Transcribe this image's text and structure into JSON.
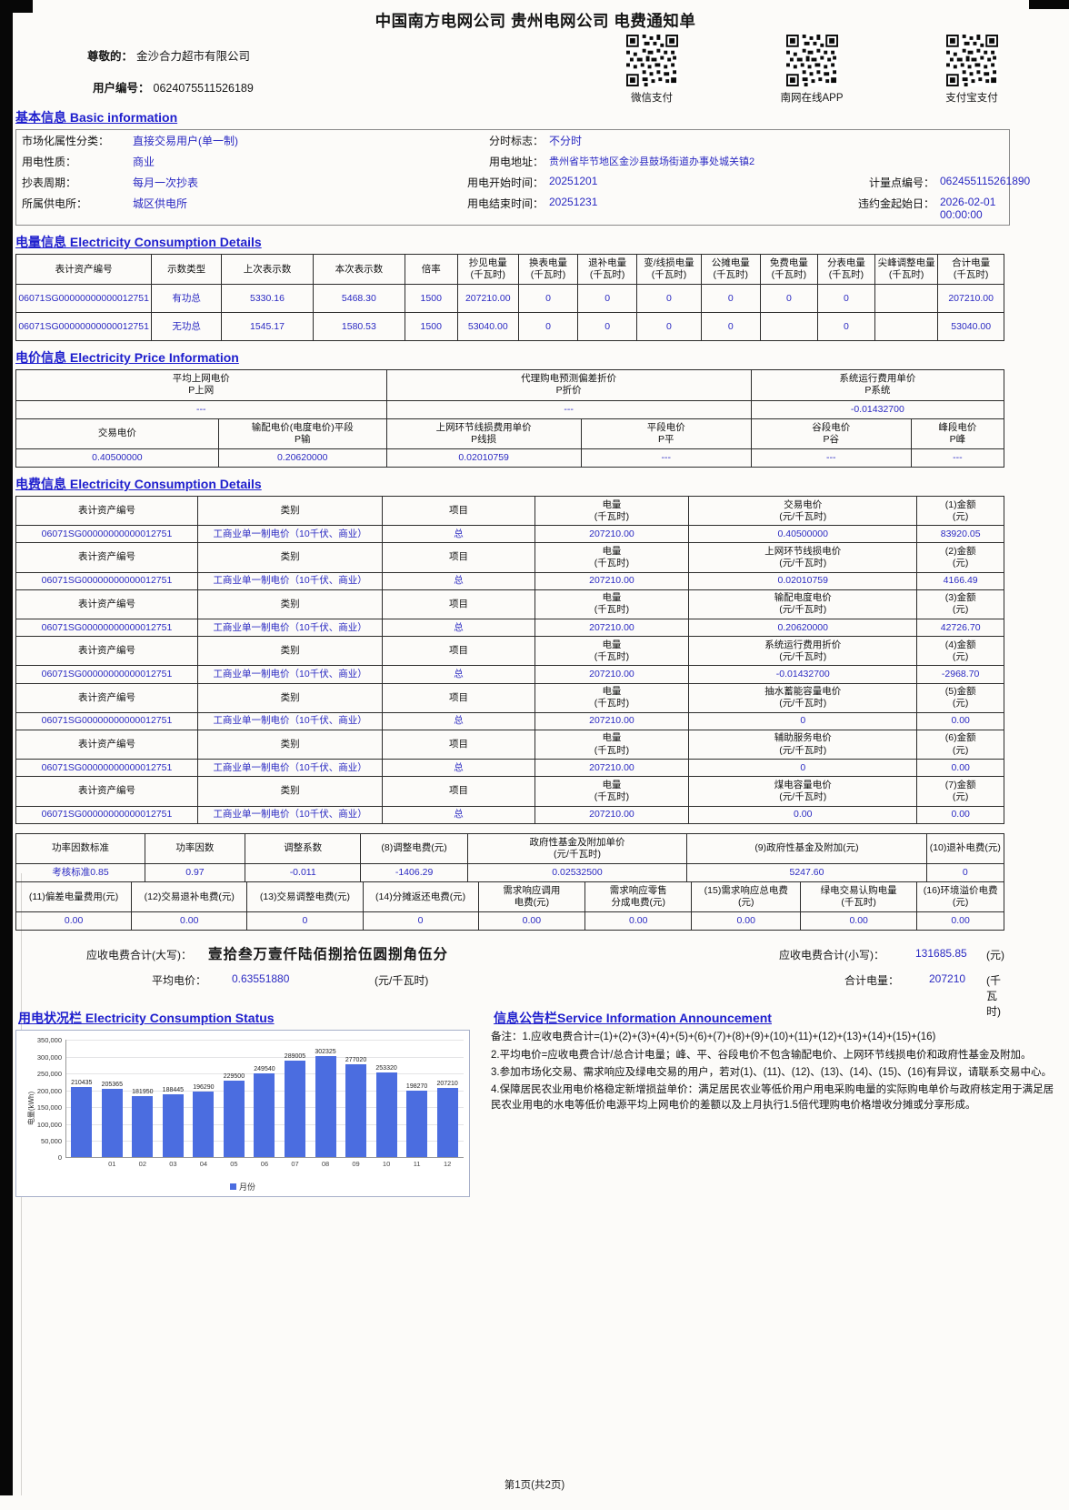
{
  "page": {
    "title": "中国南方电网公司 贵州电网公司 电费通知单",
    "footer": "第1页(共2页)"
  },
  "customer": {
    "greeting_label": "尊敬的：",
    "name": "金沙合力超市有限公司",
    "user_no_label": "用户编号：",
    "user_no": "0624075511526189"
  },
  "payments": [
    {
      "label": "微信支付"
    },
    {
      "label": "南网在线APP"
    },
    {
      "label": "支付宝支付"
    }
  ],
  "section_titles": {
    "basic": "基本信息 Basic information",
    "energy": "电量信息 Electricity Consumption Details",
    "price": "电价信息 Electricity Price Information",
    "fee": "电费信息 Electricity Consumption Details",
    "status": "用电状况栏 Electricity Consumption Status",
    "announcement": "信息公告栏Service Information Announcement"
  },
  "basic_info": {
    "r1c1l": "市场化属性分类：",
    "r1c1v": "直接交易用户(单一制)",
    "r1c2l": "分时标志：",
    "r1c2v": "不分时",
    "r2c1l": "用电性质：",
    "r2c1v": "商业",
    "r2c2l": "用电地址：",
    "r2c2v": "贵州省毕节地区金沙县鼓场街道办事处城关镇2",
    "r3c1l": "抄表周期：",
    "r3c1v": "每月一次抄表",
    "r3c2l": "用电开始时间：",
    "r3c2v": "20251201",
    "r3c3l": "计量点编号：",
    "r3c3v": "062455115261890",
    "r4c1l": "所属供电所：",
    "r4c1v": "城区供电所",
    "r4c2l": "用电结束时间：",
    "r4c2v": "20251231",
    "r4c3l": "违约金起始日：",
    "r4c3v": "2026-02-01 00:00:00"
  },
  "energy_table": {
    "widths": [
      14.2,
      7.3,
      9.6,
      9.6,
      5.5,
      6.4,
      6.2,
      6.2,
      6.7,
      6.2,
      6.0,
      6.0,
      6.6,
      6.9
    ],
    "rows": [
      {
        "h": 1,
        "cells": [
          "表计资产编号",
          "示数类型",
          "上次表示数",
          "本次表示数",
          "倍率",
          "抄见电量\n(千瓦时)",
          "换表电量\n(千瓦时)",
          "退补电量\n(千瓦时)",
          "变/线损电量\n(千瓦时)",
          "公摊电量\n(千瓦时)",
          "免费电量\n(千瓦时)",
          "分表电量\n(千瓦时)",
          "尖峰调整电量\n(千瓦时)",
          "合计电量\n(千瓦时)"
        ]
      },
      {
        "h": 0,
        "cells": [
          "06071SG00000000000012751",
          "有功总",
          "5330.16",
          "5468.30",
          "1500",
          "207210.00",
          "0",
          "0",
          "0",
          "0",
          "0",
          "0",
          "",
          "207210.00"
        ]
      },
      {
        "h": 0,
        "cells": [
          "06071SG00000000000012751",
          "无功总",
          "1545.17",
          "1580.53",
          "1500",
          "53040.00",
          "0",
          "0",
          "0",
          "0",
          "",
          "0",
          "",
          "53040.00"
        ]
      }
    ]
  },
  "price_table": {
    "widths": [
      20.5,
      17.0,
      19.7,
      17.2,
      16.2,
      9.4
    ],
    "rows": [
      {
        "h": 1,
        "cells": [
          {
            "t": "平均上网电价\nP上网",
            "span": 2
          },
          {
            "t": "代理购电预测偏差折价\nP折价",
            "span": 2
          },
          {
            "t": "系统运行费用单价\nP系统",
            "span": 2
          }
        ]
      },
      {
        "h": 0,
        "cells": [
          {
            "t": "---",
            "span": 2
          },
          {
            "t": "---",
            "span": 2
          },
          {
            "t": "-0.01432700",
            "span": 2
          }
        ]
      },
      {
        "h": 1,
        "cells": [
          "交易电价",
          "输配电价(电度电价)平段\nP输",
          "上网环节线损费用单价\nP线损",
          "平段电价\nP平",
          "谷段电价\nP谷",
          "峰段电价\nP峰"
        ]
      },
      {
        "h": 0,
        "cells": [
          "0.40500000",
          "0.20620000",
          "0.02010759",
          "---",
          "---",
          "---"
        ]
      }
    ]
  },
  "fee_table": {
    "widths": [
      18.4,
      18.7,
      15.4,
      15.6,
      23.1,
      8.8
    ],
    "rows": [
      {
        "h": 1,
        "cells": [
          "表计资产编号",
          "类别",
          "项目",
          "电量\n(千瓦时)",
          "交易电价\n(元/千瓦时)",
          "(1)金额\n(元)"
        ]
      },
      {
        "h": 0,
        "cells": [
          "06071SG00000000000012751",
          "工商业单一制电价（10千伏、商业）",
          "总",
          "207210.00",
          "0.40500000",
          "83920.05"
        ]
      },
      {
        "h": 1,
        "cells": [
          "表计资产编号",
          "类别",
          "项目",
          "电量\n(千瓦时)",
          "上网环节线损电价\n(元/千瓦时)",
          "(2)金额\n(元)"
        ]
      },
      {
        "h": 0,
        "cells": [
          "06071SG00000000000012751",
          "工商业单一制电价（10千伏、商业）",
          "总",
          "207210.00",
          "0.02010759",
          "4166.49"
        ]
      },
      {
        "h": 1,
        "cells": [
          "表计资产编号",
          "类别",
          "项目",
          "电量\n(千瓦时)",
          "输配电度电价\n(元/千瓦时)",
          "(3)金额\n(元)"
        ]
      },
      {
        "h": 0,
        "cells": [
          "06071SG00000000000012751",
          "工商业单一制电价（10千伏、商业）",
          "总",
          "207210.00",
          "0.20620000",
          "42726.70"
        ]
      },
      {
        "h": 1,
        "cells": [
          "表计资产编号",
          "类别",
          "项目",
          "电量\n(千瓦时)",
          "系统运行费用折价\n(元/千瓦时)",
          "(4)金额\n(元)"
        ]
      },
      {
        "h": 0,
        "cells": [
          "06071SG00000000000012751",
          "工商业单一制电价（10千伏、商业）",
          "总",
          "207210.00",
          "-0.01432700",
          "-2968.70"
        ]
      },
      {
        "h": 1,
        "cells": [
          "表计资产编号",
          "类别",
          "项目",
          "电量\n(千瓦时)",
          "抽水蓄能容量电价\n(元/千瓦时)",
          "(5)金额\n(元)"
        ]
      },
      {
        "h": 0,
        "cells": [
          "06071SG00000000000012751",
          "工商业单一制电价（10千伏、商业）",
          "总",
          "207210.00",
          "0",
          "0.00"
        ]
      },
      {
        "h": 1,
        "cells": [
          "表计资产编号",
          "类别",
          "项目",
          "电量\n(千瓦时)",
          "辅助服务电价\n(元/千瓦时)",
          "(6)金额\n(元)"
        ]
      },
      {
        "h": 0,
        "cells": [
          "06071SG00000000000012751",
          "工商业单一制电价（10千伏、商业）",
          "总",
          "207210.00",
          "0",
          "0.00"
        ]
      },
      {
        "h": 1,
        "cells": [
          "表计资产编号",
          "类别",
          "项目",
          "电量\n(千瓦时)",
          "煤电容量电价\n(元/千瓦时)",
          "(7)金额\n(元)"
        ]
      },
      {
        "h": 0,
        "cells": [
          "06071SG00000000000012751",
          "工商业单一制电价（10千伏、商业）",
          "总",
          "207210.00",
          "0.00",
          "0.00"
        ]
      }
    ]
  },
  "factor_table_a": {
    "widths": [
      13.8,
      10.7,
      12.4,
      11.4,
      23.5,
      25.6,
      8.3
    ],
    "rows": [
      {
        "h": 1,
        "cells": [
          "功率因数标准",
          "功率因数",
          "调整系数",
          "(8)调整电费(元)",
          "政府性基金及附加单价\n(元/千瓦时)",
          "(9)政府性基金及附加(元)",
          "(10)退补电费(元)"
        ]
      },
      {
        "h": 0,
        "cells": [
          "考核标准0.85",
          "0.97",
          "-0.011",
          "-1406.29",
          "0.02532500",
          "5247.60",
          "0"
        ]
      }
    ]
  },
  "factor_table_b": {
    "widths": [
      11.7,
      11.7,
      11.7,
      11.7,
      10.8,
      10.8,
      11.0,
      11.8,
      8.8
    ],
    "rows": [
      {
        "h": 1,
        "cells": [
          "(11)偏差电量费用(元)",
          "(12)交易退补电费(元)",
          "(13)交易调整电费(元)",
          "(14)分摊返还电费(元)",
          "需求响应调用\n电费(元)",
          "需求响应零售\n分成电费(元)",
          "(15)需求响应总电费\n(元)",
          "绿电交易认购电量\n(千瓦时)",
          "(16)环境溢价电费\n(元)"
        ]
      },
      {
        "h": 0,
        "cells": [
          "0.00",
          "0.00",
          "0",
          "0",
          "0.00",
          "0.00",
          "0.00",
          "0.00",
          "0.00"
        ]
      }
    ]
  },
  "summary": {
    "total_cap_label": "应收电费合计(大写)：",
    "total_cap_value": "壹拾叁万壹仟陆佰捌拾伍圆捌角伍分",
    "total_num_label": "应收电费合计(小写)：",
    "total_num_value": "131685.85",
    "total_num_unit": "(元)",
    "avg_price_label": "平均电价：",
    "avg_price_value": "0.63551880",
    "avg_price_unit": "(元/千瓦时)",
    "total_energy_label": "合计电量：",
    "total_energy_value": "207210",
    "total_energy_unit": "(千瓦时)"
  },
  "chart_data": {
    "type": "bar",
    "categories": [
      "",
      "01",
      "02",
      "03",
      "04",
      "05",
      "06",
      "07",
      "08",
      "09",
      "10",
      "11",
      "12"
    ],
    "values": [
      210435,
      205365,
      181950,
      188445,
      196290,
      229500,
      249540,
      289005,
      302325,
      277020,
      253320,
      198270,
      207210
    ],
    "title": "用电状况栏 Electricity Consumption Status",
    "xlabel": "月份",
    "ylabel": "电量(kWh)",
    "ylim": [
      0,
      350000
    ],
    "yticks": [
      0,
      50000,
      100000,
      150000,
      200000,
      250000,
      300000,
      350000
    ],
    "legend": [
      "月份"
    ],
    "legend_position": "bottom",
    "grid": true,
    "bar_color": "#4b6de0"
  },
  "announcement": {
    "notes": [
      "备注：1.应收电费合计=(1)+(2)+(3)+(4)+(5)+(6)+(7)+(8)+(9)+(10)+(11)+(12)+(13)+(14)+(15)+(16)",
      "2.平均电价=应收电费合计/总合计电量；峰、平、谷段电价不包含输配电价、上网环节线损电价和政府性基金及附加。",
      "3.参加市场化交易、需求响应及绿电交易的用户，若对(1)、(11)、(12)、(13)、(14)、(15)、(16)有异议，请联系交易中心。",
      "4.保障居民农业用电价格稳定新增损益单价：满足居民农业等低价用户用电采购电量的实际购电单价与政府核定用于满足居民农业用电的水电等低价电源平均上网电价的差额以及上月执行1.5倍代理购电价格增收分摊或分享形成。"
    ]
  }
}
